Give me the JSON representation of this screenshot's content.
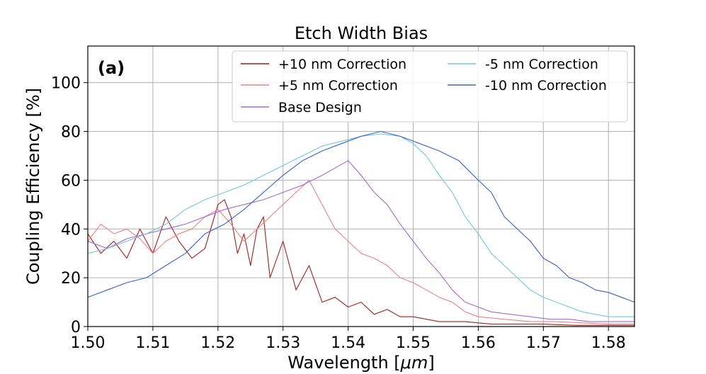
{
  "chart_data": {
    "type": "line",
    "title": "Etch Width Bias",
    "panel_label": "(a)",
    "xlabel": "Wavelength [",
    "xlabel_unit": "μm",
    "xlabel_close": "]",
    "ylabel": "Coupling Efficiency [%]",
    "xlim": [
      1.5,
      1.584
    ],
    "ylim": [
      0,
      115
    ],
    "xticks": [
      1.5,
      1.51,
      1.52,
      1.53,
      1.54,
      1.55,
      1.56,
      1.57,
      1.58
    ],
    "xtick_labels": [
      "1.50",
      "1.51",
      "1.52",
      "1.53",
      "1.54",
      "1.55",
      "1.56",
      "1.57",
      "1.58"
    ],
    "yticks": [
      0,
      20,
      40,
      60,
      80,
      100
    ],
    "ytick_labels": [
      "0",
      "20",
      "40",
      "60",
      "80",
      "100"
    ],
    "grid": true,
    "legend_position": "top-right",
    "series": [
      {
        "name": "+10 nm Correction",
        "color": "#a01f1f",
        "x": [
          1.5,
          1.502,
          1.504,
          1.506,
          1.508,
          1.51,
          1.512,
          1.514,
          1.516,
          1.518,
          1.52,
          1.521,
          1.522,
          1.523,
          1.524,
          1.525,
          1.526,
          1.527,
          1.528,
          1.53,
          1.532,
          1.534,
          1.536,
          1.538,
          1.54,
          1.542,
          1.544,
          1.546,
          1.548,
          1.55,
          1.554,
          1.558,
          1.562,
          1.566,
          1.57,
          1.575,
          1.58,
          1.584
        ],
        "y": [
          38,
          30,
          35,
          28,
          40,
          30,
          45,
          35,
          28,
          32,
          50,
          52,
          45,
          30,
          38,
          25,
          40,
          45,
          20,
          35,
          15,
          25,
          10,
          12,
          8,
          10,
          5,
          7,
          4,
          4,
          2,
          2,
          1,
          1,
          1,
          0.5,
          0.5,
          0.5
        ]
      },
      {
        "name": "+5 nm Correction",
        "color": "#f08080",
        "x": [
          1.5,
          1.502,
          1.504,
          1.506,
          1.508,
          1.51,
          1.512,
          1.514,
          1.516,
          1.518,
          1.52,
          1.522,
          1.524,
          1.526,
          1.528,
          1.53,
          1.532,
          1.534,
          1.536,
          1.538,
          1.54,
          1.542,
          1.544,
          1.546,
          1.548,
          1.55,
          1.552,
          1.554,
          1.556,
          1.558,
          1.56,
          1.564,
          1.568,
          1.572,
          1.576,
          1.58,
          1.584
        ],
        "y": [
          35,
          42,
          38,
          40,
          36,
          30,
          35,
          38,
          40,
          45,
          48,
          42,
          35,
          40,
          45,
          50,
          55,
          60,
          50,
          40,
          35,
          30,
          28,
          25,
          20,
          18,
          15,
          12,
          10,
          6,
          4,
          3,
          2,
          2,
          1.5,
          1,
          1
        ]
      },
      {
        "name": "Base Design",
        "color": "#9b6dd6",
        "x": [
          1.5,
          1.503,
          1.506,
          1.509,
          1.512,
          1.515,
          1.518,
          1.521,
          1.524,
          1.527,
          1.53,
          1.533,
          1.536,
          1.538,
          1.54,
          1.542,
          1.544,
          1.546,
          1.548,
          1.55,
          1.552,
          1.554,
          1.556,
          1.558,
          1.56,
          1.562,
          1.565,
          1.568,
          1.571,
          1.574,
          1.577,
          1.58,
          1.584
        ],
        "y": [
          35,
          32,
          36,
          38,
          40,
          42,
          45,
          48,
          50,
          52,
          55,
          58,
          62,
          65,
          68,
          62,
          55,
          50,
          42,
          35,
          28,
          22,
          15,
          10,
          8,
          6,
          5,
          4,
          3,
          3,
          2,
          2,
          2
        ]
      },
      {
        "name": "-5 nm Correction",
        "color": "#74c6e0",
        "x": [
          1.5,
          1.503,
          1.506,
          1.509,
          1.512,
          1.515,
          1.518,
          1.521,
          1.524,
          1.527,
          1.53,
          1.533,
          1.536,
          1.539,
          1.542,
          1.545,
          1.548,
          1.55,
          1.552,
          1.554,
          1.556,
          1.558,
          1.56,
          1.562,
          1.564,
          1.566,
          1.568,
          1.57,
          1.572,
          1.574,
          1.576,
          1.578,
          1.58,
          1.584
        ],
        "y": [
          30,
          32,
          35,
          38,
          42,
          48,
          52,
          55,
          58,
          62,
          66,
          70,
          74,
          76,
          78,
          79,
          78,
          75,
          70,
          62,
          55,
          45,
          38,
          30,
          25,
          20,
          15,
          12,
          10,
          8,
          6,
          5,
          4,
          4
        ]
      },
      {
        "name": "-10 nm Correction",
        "color": "#3a5fd0",
        "x": [
          1.5,
          1.503,
          1.506,
          1.509,
          1.512,
          1.515,
          1.518,
          1.521,
          1.524,
          1.527,
          1.53,
          1.533,
          1.536,
          1.539,
          1.542,
          1.545,
          1.548,
          1.551,
          1.554,
          1.557,
          1.56,
          1.562,
          1.564,
          1.566,
          1.568,
          1.57,
          1.572,
          1.574,
          1.576,
          1.578,
          1.58,
          1.582,
          1.584
        ],
        "y": [
          12,
          15,
          18,
          20,
          25,
          30,
          38,
          42,
          48,
          55,
          62,
          68,
          72,
          75,
          78,
          80,
          78,
          75,
          72,
          68,
          60,
          55,
          45,
          40,
          35,
          28,
          25,
          20,
          18,
          15,
          14,
          12,
          10
        ]
      }
    ]
  }
}
